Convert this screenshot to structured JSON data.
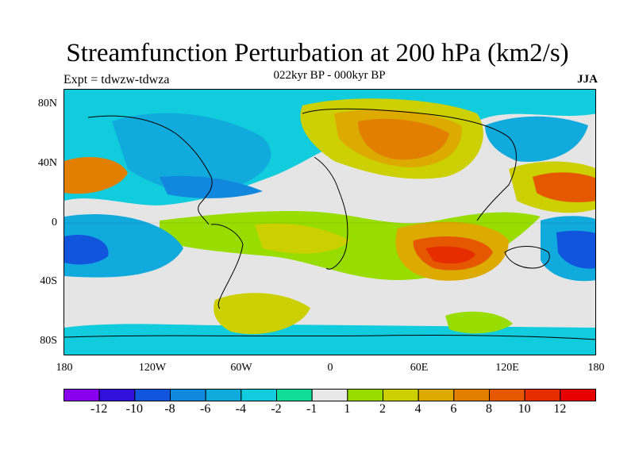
{
  "title": "Streamfunction Perturbation at 200 hPa (km2/s)",
  "subtitle": "022kyr BP - 000kyr BP",
  "experiment": "Expt = tdwzw-tdwza",
  "season": "JJA",
  "map": {
    "projection": "cylindrical-equidistant",
    "lon_range": [
      -180,
      180
    ],
    "lat_range": [
      -90,
      90
    ],
    "y_tick_labels": [
      "80N",
      "40N",
      "0",
      "40S",
      "80S"
    ],
    "x_tick_labels": [
      "180",
      "120W",
      "60W",
      "0",
      "60E",
      "120E",
      "180"
    ],
    "coastlines": true
  },
  "colorbar": {
    "colors": [
      "#8800ee",
      "#3311dd",
      "#1155dd",
      "#1188dd",
      "#11aadd",
      "#11ccdd",
      "#11dd99",
      "#e8e8e8",
      "#99dd00",
      "#ccd000",
      "#dcaa00",
      "#e27f00",
      "#e55800",
      "#e62d00",
      "#e60000"
    ],
    "labels": [
      "-12",
      "-10",
      "-8",
      "-6",
      "-4",
      "-2",
      "-1",
      "1",
      "2",
      "4",
      "6",
      "8",
      "10",
      "12"
    ]
  }
}
